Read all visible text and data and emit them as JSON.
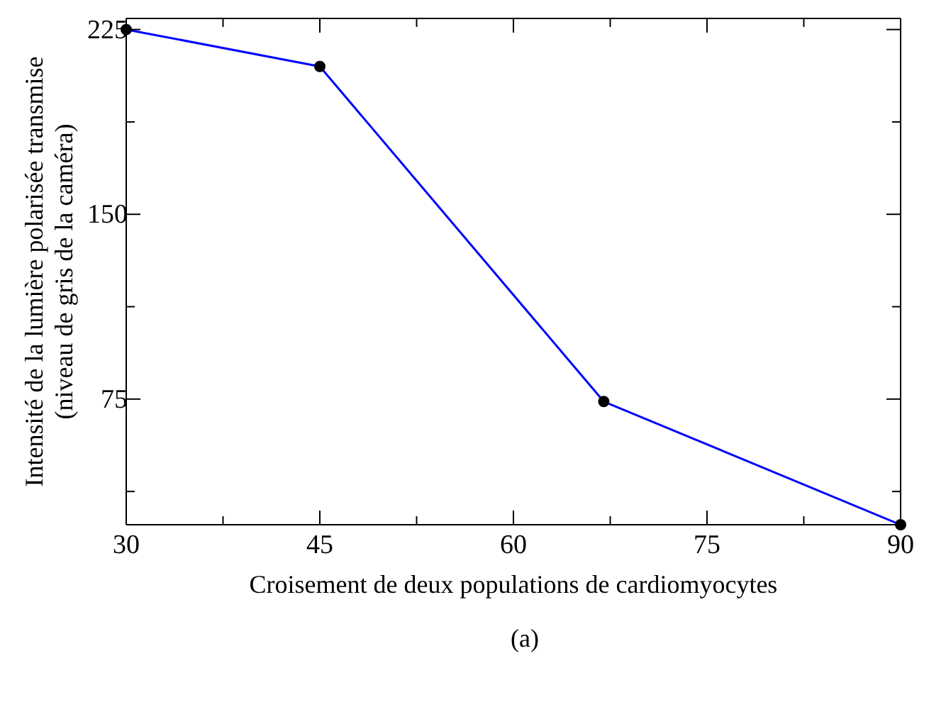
{
  "chart_data": {
    "type": "line",
    "xlabel": "Croisement de deux populations de cardiomyocytes",
    "ylabel": "Intensité de la lumière polarisée transmise\n(niveau de gris de la caméra)",
    "annotations": [
      "(a)"
    ],
    "x": [
      30,
      45,
      67,
      90
    ],
    "series": [
      {
        "color": "#0000ff",
        "values": [
          225,
          210,
          74,
          24
        ]
      }
    ],
    "xlim": [
      30,
      90
    ],
    "xticks": [
      30,
      {
        "value": 37.5,
        "label": null
      },
      45,
      {
        "value": 52.5,
        "label": null
      },
      60,
      {
        "value": 67.5,
        "label": null
      },
      75,
      {
        "value": 82.5,
        "label": null
      },
      90
    ],
    "ylim": [
      24,
      229.5
    ],
    "yticks": [
      {
        "value": 37.5,
        "label": null
      },
      75,
      {
        "value": 112.5,
        "label": null
      },
      150,
      {
        "value": 187.5,
        "label": null
      },
      225
    ],
    "marker": "circle",
    "line_style": "solid",
    "grid": false,
    "legend": false
  }
}
